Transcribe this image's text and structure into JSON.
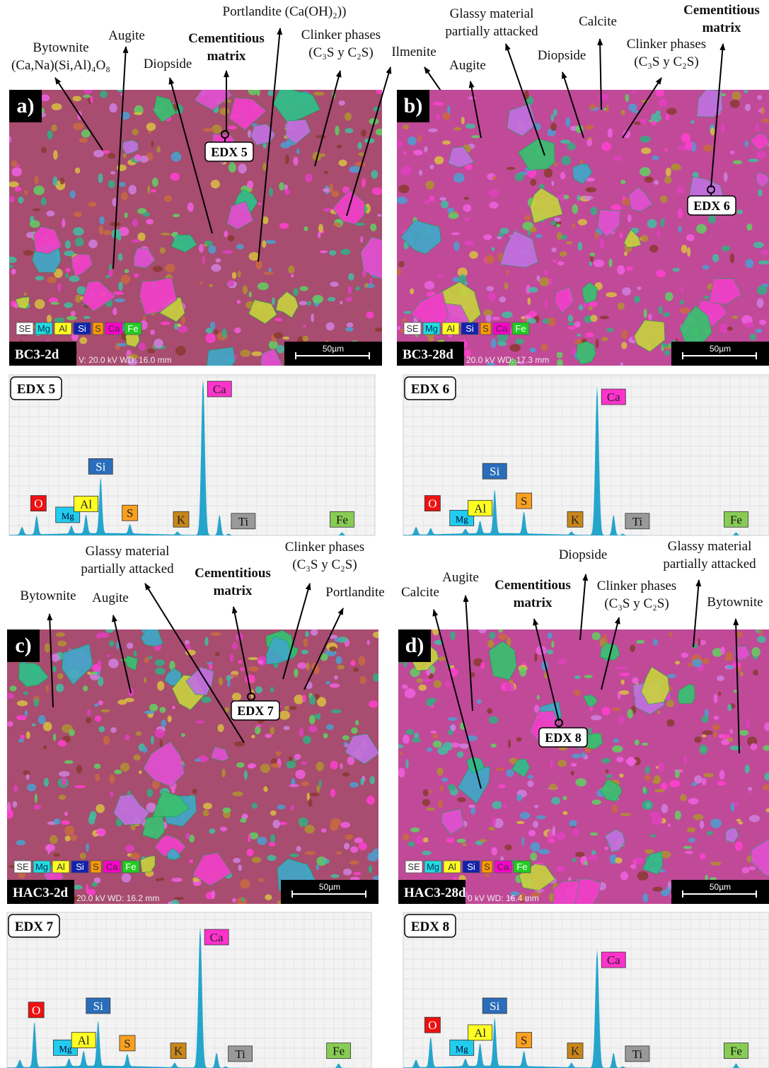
{
  "map_legend": [
    "SE",
    "Mg",
    "Al",
    "Si",
    "S",
    "Ca",
    "Fe"
  ],
  "panels": [
    {
      "letter": "a)",
      "sample": "BC3-2d",
      "microscope_info": "V: 20.0 kV  WD: 16.0 mm",
      "scale_bar": "50µm",
      "edx_point": "EDX 5",
      "annotations": [
        {
          "lines": [
            "Bytownite",
            "(Ca,Na)(Si,Al)₄O₈"
          ]
        },
        {
          "lines": [
            "Augite"
          ]
        },
        {
          "lines": [
            "Cementitious",
            "matrix"
          ]
        },
        {
          "lines": [
            "Portlandite (Ca(OH)₂))"
          ]
        },
        {
          "lines": [
            "Clinker phases",
            "(C₃S y C₂S)"
          ]
        },
        {
          "lines": [
            "Diopside"
          ]
        },
        {
          "lines": [
            "Ilmenite"
          ]
        }
      ],
      "peak_labels": [
        "O",
        "Mg",
        "Al",
        "Si",
        "S",
        "K",
        "Ca",
        "Ti",
        "Fe"
      ]
    },
    {
      "letter": "b)",
      "sample": "BC3-28d",
      "microscope_info": "20.0 kV  WD: 17.3 mm",
      "scale_bar": "50µm",
      "edx_point": "EDX 6",
      "annotations": [
        {
          "lines": [
            "Glassy material",
            "partially attacked"
          ]
        },
        {
          "lines": [
            "Calcite"
          ]
        },
        {
          "lines": [
            "Cementitious",
            "matrix"
          ]
        },
        {
          "lines": [
            "Clinker phases",
            "(C₃S y C₂S)"
          ]
        },
        {
          "lines": [
            "Diopside"
          ]
        },
        {
          "lines": [
            "Augite"
          ]
        }
      ],
      "peak_labels": [
        "O",
        "Mg",
        "Al",
        "Si",
        "S",
        "K",
        "Ca",
        "Ti",
        "Fe"
      ]
    },
    {
      "letter": "c)",
      "sample": "HAC3-2d",
      "microscope_info": "20.0 kV  WD: 16.2 mm",
      "scale_bar": "50µm",
      "edx_point": "EDX 7",
      "annotations": [
        {
          "lines": [
            "Glassy material",
            "partially attacked"
          ]
        },
        {
          "lines": [
            "Clinker phases",
            "(C₃S y C₂S)"
          ]
        },
        {
          "lines": [
            "Cementitious",
            "matrix"
          ]
        },
        {
          "lines": [
            "Bytownite"
          ]
        },
        {
          "lines": [
            "Augite"
          ]
        },
        {
          "lines": [
            "Portlandite"
          ]
        }
      ],
      "peak_labels": [
        "O",
        "Mg",
        "Al",
        "Si",
        "S",
        "K",
        "Ca",
        "Ti",
        "Fe"
      ]
    },
    {
      "letter": "d)",
      "sample": "HAC3-28d",
      "microscope_info": "0 kV  WD: 16.4 mm",
      "scale_bar": "50µm",
      "edx_point": "EDX 8",
      "annotations": [
        {
          "lines": [
            "Calcite"
          ]
        },
        {
          "lines": [
            "Augite"
          ]
        },
        {
          "lines": [
            "Cementitious",
            "matrix"
          ]
        },
        {
          "lines": [
            "Diopside"
          ]
        },
        {
          "lines": [
            "Clinker phases",
            "(C₃S y C₂S)"
          ]
        },
        {
          "lines": [
            "Glassy material",
            "partially attacked"
          ]
        },
        {
          "lines": [
            "Bytownite"
          ]
        }
      ],
      "peak_labels": [
        "O",
        "Mg",
        "Al",
        "Si",
        "S",
        "K",
        "Ca",
        "Ti",
        "Fe"
      ]
    }
  ]
}
